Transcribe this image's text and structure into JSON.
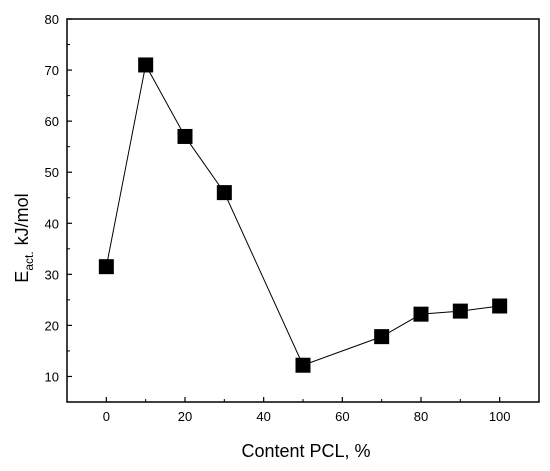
{
  "chart_data": {
    "type": "line",
    "title": "",
    "xlabel": "Content PCL, %",
    "ylabel": {
      "symbol": "E",
      "subscript": "act.",
      "unit": "kJ/mol"
    },
    "xlim": [
      -10,
      110
    ],
    "ylim": [
      5,
      80
    ],
    "xticks": [
      0,
      20,
      40,
      60,
      80,
      100
    ],
    "yticks": [
      10,
      20,
      30,
      40,
      50,
      60,
      70,
      80
    ],
    "grid": false,
    "legend": "none",
    "marker": "square",
    "colors": {
      "line": "#000000",
      "marker": "#000000"
    },
    "series": [
      {
        "x": [
          0,
          10,
          20,
          30,
          50,
          70,
          80,
          90,
          100
        ],
        "values": [
          31.5,
          71,
          57,
          46,
          12.2,
          17.8,
          22.2,
          22.8,
          23.8
        ]
      }
    ]
  }
}
